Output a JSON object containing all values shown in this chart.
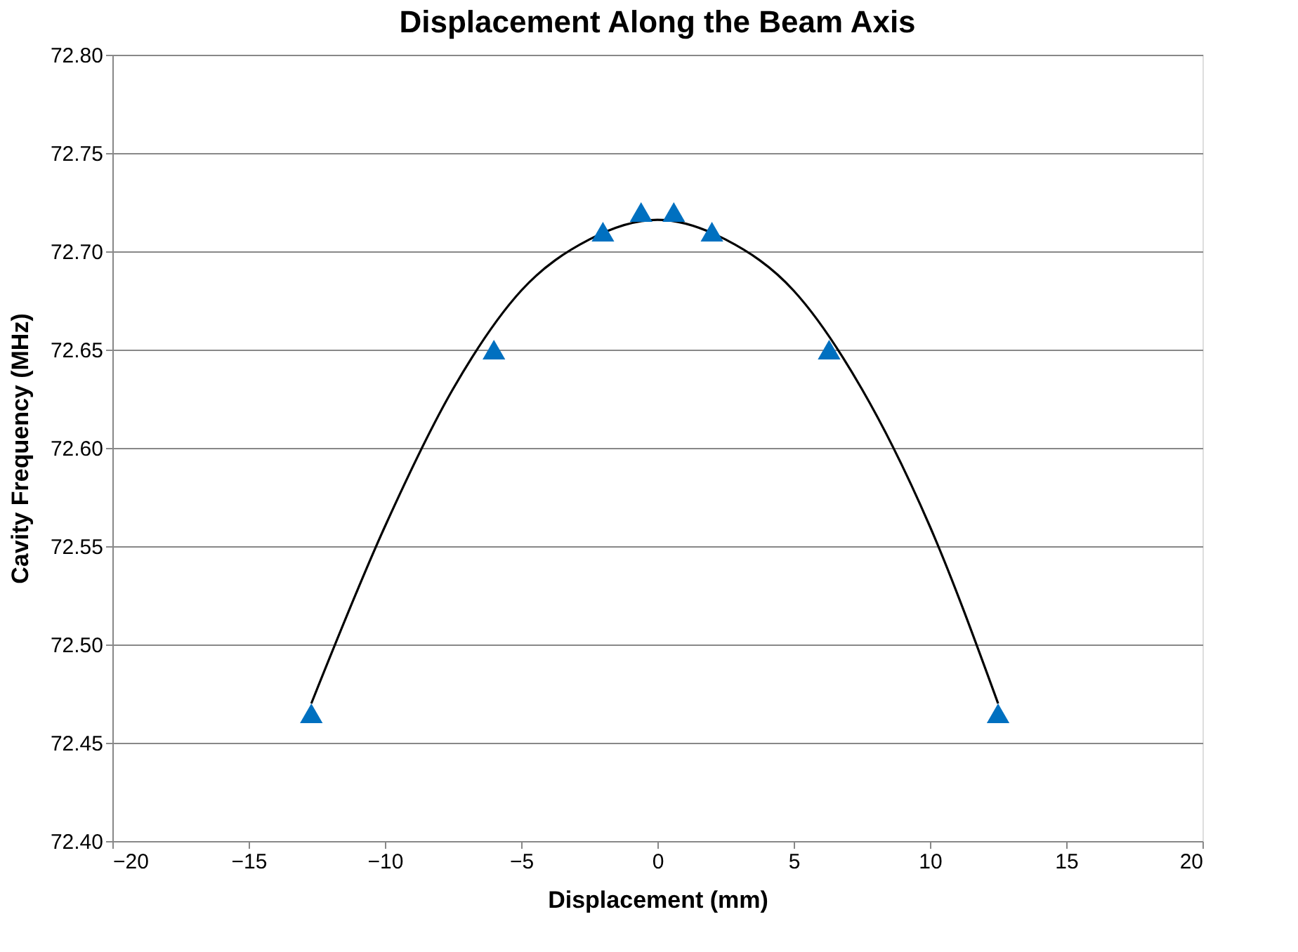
{
  "chart_data": {
    "type": "scatter",
    "title": "Displacement Along the Beam Axis",
    "xlabel": "Displacement (mm)",
    "ylabel": "Cavity Frequency (MHz)",
    "xlim": [
      -20,
      20
    ],
    "xticks": [
      -20,
      -15,
      -10,
      -5,
      0,
      5,
      10,
      15,
      20
    ],
    "ylim": [
      72.4,
      72.8
    ],
    "yticks": [
      {
        "value": 72.4,
        "label": "72.40"
      },
      {
        "value": 72.45,
        "label": "72.45"
      },
      {
        "value": 72.5,
        "label": "72.50"
      },
      {
        "value": 72.55,
        "label": "72.55"
      },
      {
        "value": 72.6,
        "label": "72.60"
      },
      {
        "value": 72.65,
        "label": "72.65"
      },
      {
        "value": 72.7,
        "label": "72.70"
      },
      {
        "value": 72.75,
        "label": "72.75"
      },
      {
        "value": 72.8,
        "label": "72.80"
      }
    ],
    "grid": "y",
    "series": [
      {
        "color": "#0070c0",
        "marker": "triangle",
        "x": [
          -12.7,
          -6,
          -2,
          -0.6,
          0.6,
          2,
          6.3,
          12.5
        ],
        "values": [
          72.465,
          72.65,
          72.71,
          72.72,
          72.72,
          72.71,
          72.65,
          72.465
        ]
      },
      {
        "type": "line",
        "color": "#000000",
        "line_style": "solid",
        "marker": "none",
        "x": [
          -12.7,
          -10,
          -7.5,
          -5,
          -2.5,
          0,
          2.5,
          5,
          7.5,
          10,
          12.5
        ],
        "values": [
          72.47,
          72.56,
          72.63,
          72.68,
          72.706,
          72.716,
          72.706,
          72.68,
          72.63,
          72.56,
          72.47
        ]
      }
    ]
  }
}
